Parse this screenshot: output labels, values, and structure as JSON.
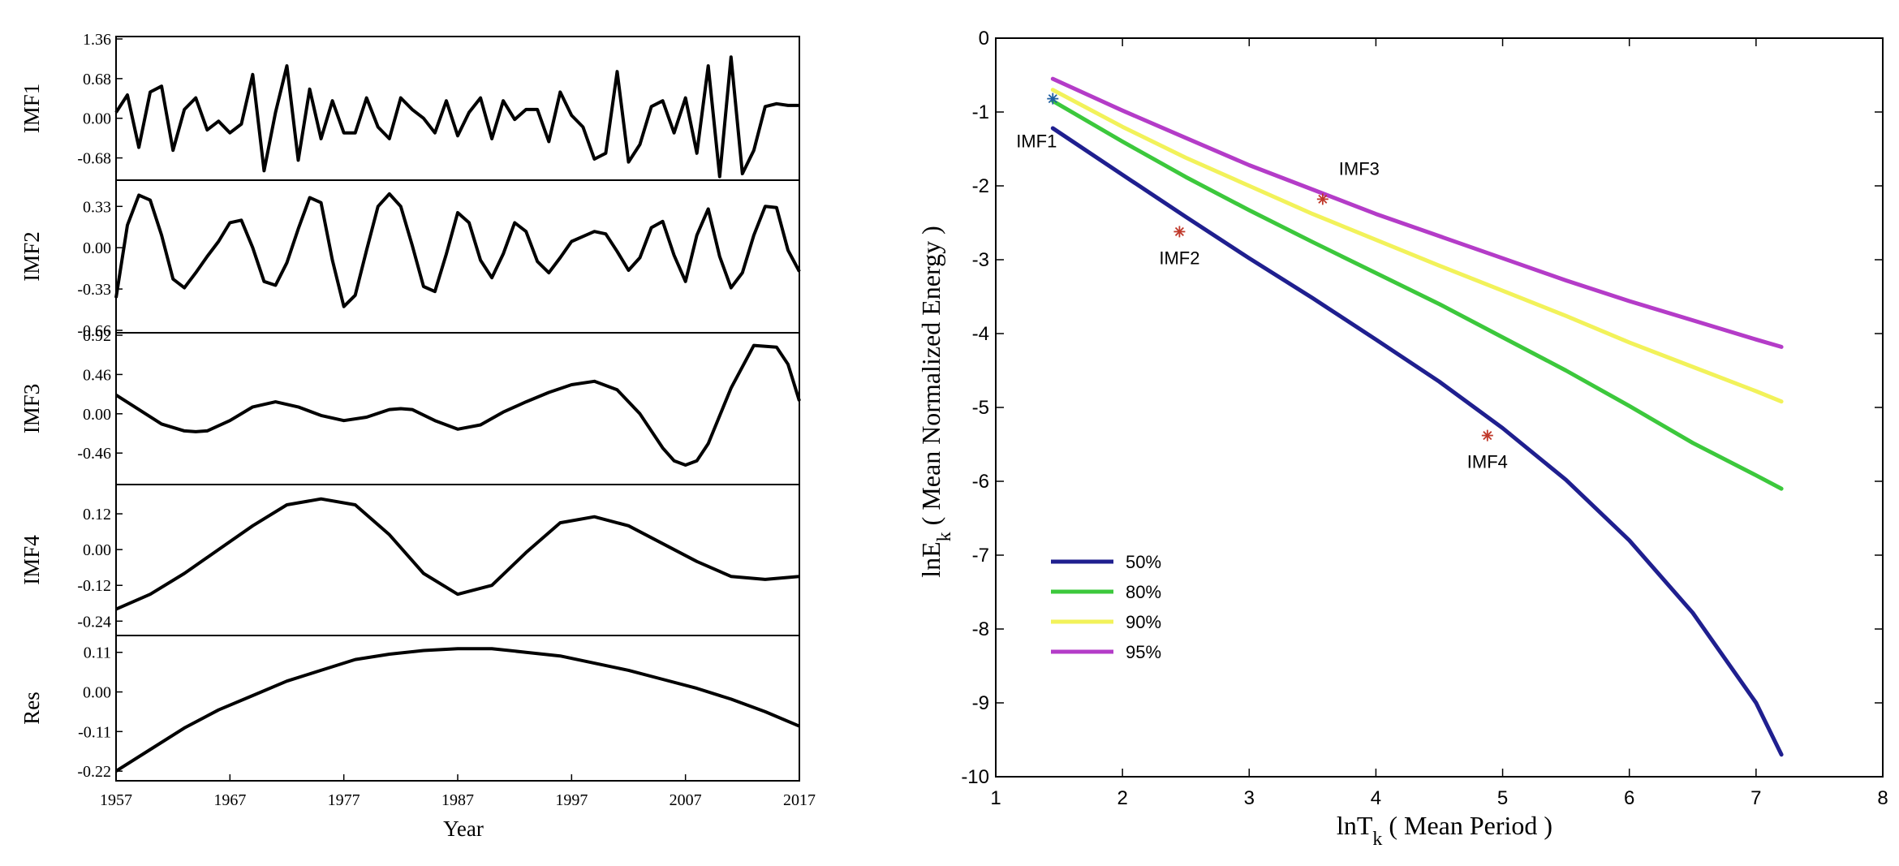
{
  "chart_data": [
    {
      "type": "line",
      "title": "",
      "xlabel": "Year",
      "x_ticks": [
        "1957",
        "1967",
        "1977",
        "1987",
        "1997",
        "2007",
        "2017"
      ],
      "xlim": [
        1957,
        2017
      ],
      "panels": [
        {
          "name": "IMF1",
          "ylabel": "IMF1",
          "ylim": [
            -1.02,
            1.36
          ],
          "y_ticks": [
            "1.36",
            "0.68",
            "0.00",
            "-0.68"
          ],
          "y_tick_values": [
            1.36,
            0.68,
            0.0,
            -0.68
          ],
          "x": [
            1957,
            1958,
            1959,
            1960,
            1961,
            1962,
            1963,
            1964,
            1965,
            1966,
            1967,
            1968,
            1969,
            1970,
            1971,
            1972,
            1973,
            1974,
            1975,
            1976,
            1977,
            1978,
            1979,
            1980,
            1981,
            1982,
            1983,
            1984,
            1985,
            1986,
            1987,
            1988,
            1989,
            1990,
            1991,
            1992,
            1993,
            1994,
            1995,
            1996,
            1997,
            1998,
            1999,
            2000,
            2001,
            2002,
            2003,
            2004,
            2005,
            2006,
            2007,
            2008,
            2009,
            2010,
            2011,
            2012,
            2013,
            2014,
            2015,
            2016,
            2017
          ],
          "values": [
            0.1,
            0.4,
            -0.5,
            0.45,
            0.55,
            -0.55,
            0.15,
            0.35,
            -0.2,
            -0.05,
            -0.25,
            -0.1,
            0.75,
            -0.9,
            0.1,
            0.9,
            -0.72,
            0.5,
            -0.35,
            0.3,
            -0.25,
            -0.25,
            0.35,
            -0.15,
            -0.35,
            0.35,
            0.15,
            0.0,
            -0.25,
            0.3,
            -0.3,
            0.1,
            0.35,
            -0.35,
            0.3,
            -0.02,
            0.15,
            0.15,
            -0.4,
            0.45,
            0.05,
            -0.15,
            -0.7,
            -0.6,
            0.8,
            -0.75,
            -0.45,
            0.2,
            0.3,
            -0.25,
            0.35,
            -0.6,
            0.9,
            -1.0,
            1.05,
            -0.95,
            -0.55,
            0.2,
            0.25,
            0.22,
            0.22
          ]
        },
        {
          "name": "IMF2",
          "ylabel": "IMF2",
          "ylim": [
            -0.66,
            0.52
          ],
          "y_ticks": [
            "0.33",
            "0.00",
            "-0.33",
            "-0.66"
          ],
          "y_tick_values": [
            0.33,
            0.0,
            -0.33,
            -0.66
          ],
          "x": [
            1957,
            1958,
            1959,
            1960,
            1961,
            1962,
            1963,
            1964,
            1965,
            1966,
            1967,
            1968,
            1969,
            1970,
            1971,
            1972,
            1973,
            1974,
            1975,
            1976,
            1977,
            1978,
            1979,
            1980,
            1981,
            1982,
            1983,
            1984,
            1985,
            1986,
            1987,
            1988,
            1989,
            1990,
            1991,
            1992,
            1993,
            1994,
            1995,
            1996,
            1997,
            1998,
            1999,
            2000,
            2001,
            2002,
            2003,
            2004,
            2005,
            2006,
            2007,
            2008,
            2009,
            2010,
            2011,
            2012,
            2013,
            2014,
            2015,
            2016,
            2017
          ],
          "values": [
            -0.4,
            0.18,
            0.42,
            0.38,
            0.1,
            -0.25,
            -0.32,
            -0.2,
            -0.07,
            0.05,
            0.2,
            0.22,
            0.0,
            -0.27,
            -0.3,
            -0.12,
            0.15,
            0.4,
            0.36,
            -0.1,
            -0.47,
            -0.38,
            -0.02,
            0.33,
            0.43,
            0.33,
            0.02,
            -0.31,
            -0.35,
            -0.05,
            0.28,
            0.2,
            -0.1,
            -0.24,
            -0.05,
            0.2,
            0.13,
            -0.11,
            -0.2,
            -0.08,
            0.05,
            0.09,
            0.13,
            0.11,
            -0.03,
            -0.18,
            -0.08,
            0.16,
            0.21,
            -0.06,
            -0.27,
            0.1,
            0.31,
            -0.07,
            -0.32,
            -0.2,
            0.1,
            0.33,
            0.32,
            -0.02,
            -0.19
          ]
        },
        {
          "name": "IMF3",
          "ylabel": "IMF3",
          "ylim": [
            -0.8,
            0.92
          ],
          "y_ticks": [
            "0.92",
            "0.46",
            "0.00",
            "-0.46"
          ],
          "y_tick_values": [
            0.92,
            0.46,
            0.0,
            -0.46
          ],
          "x": [
            1957,
            1959,
            1961,
            1963,
            1964,
            1965,
            1967,
            1969,
            1971,
            1973,
            1975,
            1977,
            1979,
            1981,
            1982,
            1983,
            1985,
            1987,
            1989,
            1991,
            1993,
            1995,
            1997,
            1999,
            2001,
            2003,
            2005,
            2006,
            2007,
            2008,
            2009,
            2011,
            2013,
            2015,
            2016,
            2017
          ],
          "values": [
            0.22,
            0.05,
            -0.12,
            -0.2,
            -0.21,
            -0.2,
            -0.08,
            0.08,
            0.14,
            0.08,
            -0.02,
            -0.08,
            -0.04,
            0.05,
            0.06,
            0.05,
            -0.08,
            -0.18,
            -0.13,
            0.02,
            0.14,
            0.25,
            0.34,
            0.38,
            0.28,
            0.0,
            -0.4,
            -0.55,
            -0.6,
            -0.55,
            -0.35,
            0.3,
            0.8,
            0.78,
            0.58,
            0.15
          ]
        },
        {
          "name": "IMF4",
          "ylabel": "IMF4",
          "ylim": [
            -0.28,
            0.21
          ],
          "y_ticks": [
            "0.12",
            "0.00",
            "-0.12",
            "-0.24"
          ],
          "y_tick_values": [
            0.12,
            0.0,
            -0.12,
            -0.24
          ],
          "x": [
            1957,
            1960,
            1963,
            1966,
            1969,
            1972,
            1975,
            1978,
            1981,
            1984,
            1987,
            1990,
            1993,
            1996,
            1999,
            2002,
            2005,
            2008,
            2011,
            2014,
            2017
          ],
          "values": [
            -0.2,
            -0.15,
            -0.08,
            0.0,
            0.08,
            0.15,
            0.17,
            0.15,
            0.05,
            -0.08,
            -0.15,
            -0.12,
            -0.01,
            0.09,
            0.11,
            0.08,
            0.02,
            -0.04,
            -0.09,
            -0.1,
            -0.09
          ]
        },
        {
          "name": "Res",
          "ylabel": "Res",
          "ylim": [
            -0.24,
            0.15
          ],
          "y_ticks": [
            "0.11",
            "0.00",
            "-0.11",
            "-0.22"
          ],
          "y_tick_values": [
            0.11,
            0.0,
            -0.11,
            -0.22
          ],
          "x": [
            1957,
            1960,
            1963,
            1966,
            1969,
            1972,
            1975,
            1978,
            1981,
            1984,
            1987,
            1990,
            1993,
            1996,
            1999,
            2002,
            2005,
            2008,
            2011,
            2014,
            2017
          ],
          "values": [
            -0.22,
            -0.16,
            -0.1,
            -0.05,
            -0.01,
            0.03,
            0.06,
            0.09,
            0.105,
            0.115,
            0.12,
            0.12,
            0.11,
            0.1,
            0.08,
            0.06,
            0.035,
            0.01,
            -0.02,
            -0.055,
            -0.095
          ]
        }
      ]
    },
    {
      "type": "line",
      "title": "",
      "xlabel": "lnT",
      "xlabel_sub": "k",
      "xlabel_rest": " ( Mean Period )",
      "ylabel": "lnE",
      "ylabel_sub": "k",
      "ylabel_rest": " ( Mean Normalized Energy )",
      "xlim": [
        1,
        8
      ],
      "ylim": [
        -10,
        0
      ],
      "x_ticks": [
        1,
        2,
        3,
        4,
        5,
        6,
        7,
        8
      ],
      "y_ticks": [
        0,
        -1,
        -2,
        -3,
        -4,
        -5,
        -6,
        -7,
        -8,
        -9,
        -10
      ],
      "legend_position": "lower-left",
      "series": [
        {
          "name": "50%",
          "color": "#1f1f8f",
          "x": [
            1.45,
            2.0,
            2.5,
            3.0,
            3.5,
            4.0,
            4.5,
            5.0,
            5.5,
            6.0,
            6.5,
            7.0,
            7.2
          ],
          "values": [
            -1.22,
            -1.85,
            -2.42,
            -2.98,
            -3.52,
            -4.08,
            -4.65,
            -5.28,
            -5.98,
            -6.8,
            -7.78,
            -9.0,
            -9.7
          ]
        },
        {
          "name": "80%",
          "color": "#3cc83c",
          "x": [
            1.45,
            2.0,
            2.5,
            3.0,
            3.5,
            4.0,
            4.5,
            5.0,
            5.5,
            6.0,
            6.5,
            7.0,
            7.2
          ],
          "values": [
            -0.85,
            -1.4,
            -1.88,
            -2.33,
            -2.76,
            -3.18,
            -3.6,
            -4.05,
            -4.5,
            -4.98,
            -5.48,
            -5.92,
            -6.1
          ]
        },
        {
          "name": "90%",
          "color": "#f2f25a",
          "x": [
            1.45,
            2.0,
            2.5,
            3.0,
            3.5,
            4.0,
            4.5,
            5.0,
            5.5,
            6.0,
            6.5,
            7.0,
            7.2
          ],
          "values": [
            -0.7,
            -1.2,
            -1.62,
            -2.0,
            -2.38,
            -2.73,
            -3.08,
            -3.42,
            -3.76,
            -4.12,
            -4.45,
            -4.78,
            -4.92
          ]
        },
        {
          "name": "95%",
          "color": "#b43cc8",
          "x": [
            1.45,
            2.0,
            2.5,
            3.0,
            3.5,
            4.0,
            4.5,
            5.0,
            5.5,
            6.0,
            6.5,
            7.0,
            7.2
          ],
          "values": [
            -0.55,
            -0.98,
            -1.35,
            -1.72,
            -2.05,
            -2.38,
            -2.68,
            -2.98,
            -3.28,
            -3.56,
            -3.82,
            -4.08,
            -4.18
          ]
        }
      ],
      "points": [
        {
          "label": "IMF1",
          "x": 1.45,
          "y": -0.82,
          "color": "#1f5fa0",
          "label_side": "below-left"
        },
        {
          "label": "IMF2",
          "x": 2.45,
          "y": -2.62,
          "color": "#c0392b",
          "label_side": "below"
        },
        {
          "label": "IMF3",
          "x": 3.58,
          "y": -2.18,
          "color": "#c0392b",
          "label_side": "above-right"
        },
        {
          "label": "IMF4",
          "x": 4.88,
          "y": -5.38,
          "color": "#c0392b",
          "label_side": "below"
        }
      ]
    }
  ]
}
